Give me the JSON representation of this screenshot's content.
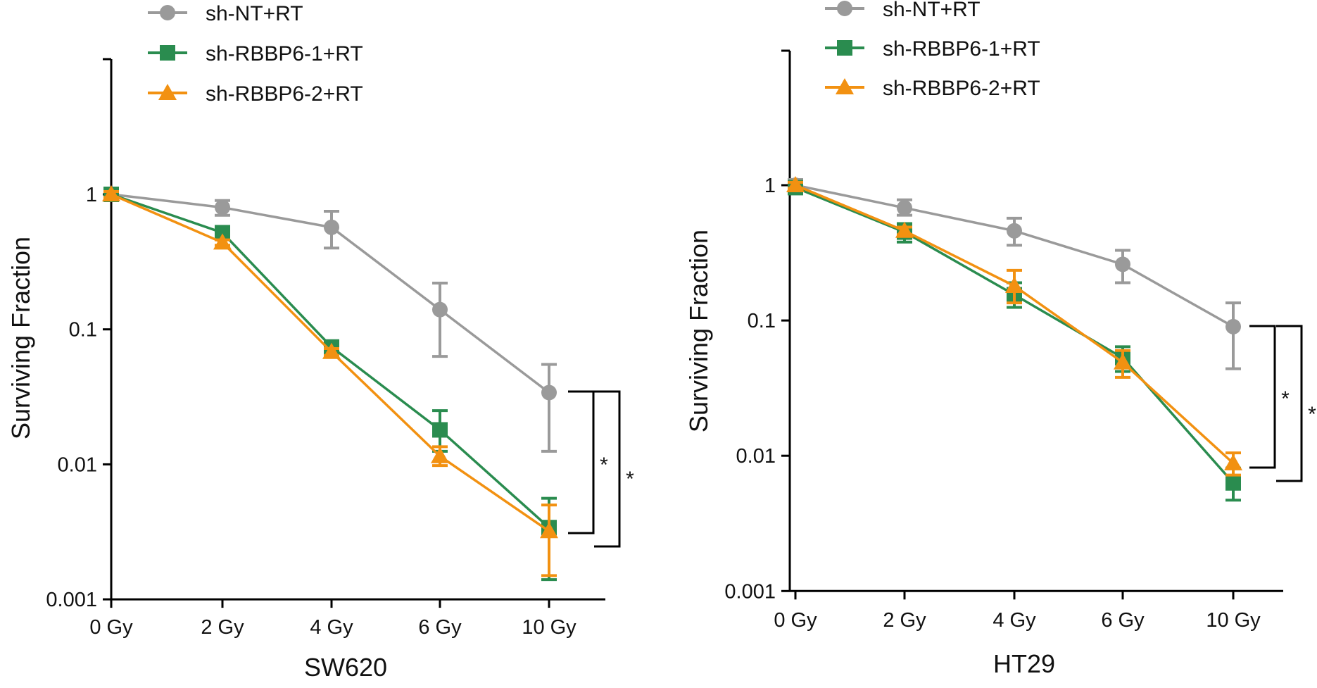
{
  "chart_data": [
    {
      "type": "line",
      "title": "",
      "xlabel": "SW620",
      "ylabel": "Surviving Fraction",
      "y_scale": "log",
      "ylim": [
        0.001,
        10
      ],
      "y_ticks": [
        1,
        0.1,
        0.01,
        0.001
      ],
      "y_tick_labels": [
        "1",
        "0.1",
        "0.01",
        "0.001"
      ],
      "categories": [
        "0 Gy",
        "2 Gy",
        "4 Gy",
        "6 Gy",
        "10 Gy"
      ],
      "legend_position": "top-left",
      "series": [
        {
          "name": "sh-NT+RT",
          "color": "#9a9a9a",
          "marker": "circle",
          "values": [
            1.0,
            0.8,
            0.57,
            0.14,
            0.034
          ],
          "err_low": [
            0.93,
            0.7,
            0.4,
            0.063,
            0.0125
          ],
          "err_high": [
            1.07,
            0.9,
            0.75,
            0.22,
            0.055
          ]
        },
        {
          "name": "sh-RBBP6-1+RT",
          "color": "#2a8c4f",
          "marker": "square",
          "values": [
            1.0,
            0.52,
            0.074,
            0.018,
            0.0034
          ],
          "err_low": [
            0.94,
            0.48,
            0.068,
            0.0125,
            0.0014
          ],
          "err_high": [
            1.06,
            0.56,
            0.08,
            0.025,
            0.0056
          ]
        },
        {
          "name": "sh-RBBP6-2+RT",
          "color": "#f29111",
          "marker": "triangle",
          "values": [
            1.0,
            0.44,
            0.068,
            0.0115,
            0.0032
          ],
          "err_low": [
            0.95,
            0.42,
            0.064,
            0.0098,
            0.0015
          ],
          "err_high": [
            1.05,
            0.46,
            0.072,
            0.0135,
            0.005
          ]
        }
      ],
      "annotations": [
        "*",
        "*"
      ]
    },
    {
      "type": "line",
      "title": "",
      "xlabel": "HT29",
      "ylabel": "Surviving Fraction",
      "y_scale": "log",
      "ylim": [
        0.001,
        10
      ],
      "y_ticks": [
        1,
        0.1,
        0.01,
        0.001
      ],
      "y_tick_labels": [
        "1",
        "0.1",
        "0.01",
        "0.001"
      ],
      "categories": [
        "0 Gy",
        "2 Gy",
        "4 Gy",
        "6 Gy",
        "10 Gy"
      ],
      "legend_position": "top-left",
      "series": [
        {
          "name": "sh-NT+RT",
          "color": "#9a9a9a",
          "marker": "circle",
          "values": [
            1.0,
            0.68,
            0.46,
            0.26,
            0.09
          ],
          "err_low": [
            0.9,
            0.6,
            0.36,
            0.19,
            0.044
          ],
          "err_high": [
            1.1,
            0.78,
            0.57,
            0.33,
            0.135
          ]
        },
        {
          "name": "sh-RBBP6-1+RT",
          "color": "#2a8c4f",
          "marker": "square",
          "values": [
            0.96,
            0.45,
            0.155,
            0.053,
            0.0063
          ],
          "err_low": [
            0.92,
            0.38,
            0.125,
            0.042,
            0.0047
          ],
          "err_high": [
            1.0,
            0.52,
            0.19,
            0.064,
            0.0081
          ]
        },
        {
          "name": "sh-RBBP6-2+RT",
          "color": "#f29111",
          "marker": "triangle",
          "values": [
            1.0,
            0.46,
            0.18,
            0.049,
            0.0088
          ],
          "err_low": [
            0.95,
            0.43,
            0.135,
            0.038,
            0.0072
          ],
          "err_high": [
            1.05,
            0.49,
            0.235,
            0.06,
            0.0105
          ]
        }
      ],
      "annotations": [
        "*",
        "*"
      ]
    }
  ]
}
